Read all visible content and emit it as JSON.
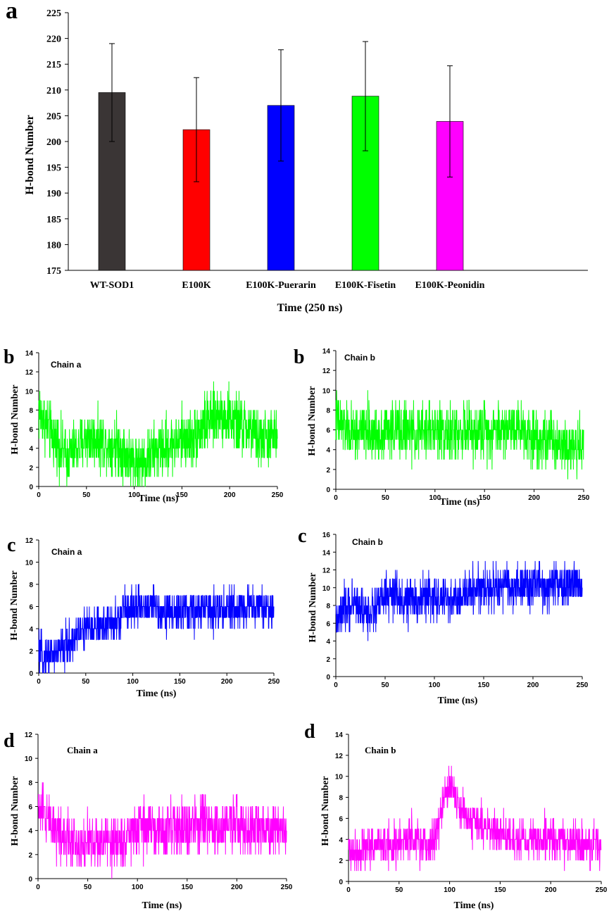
{
  "chart_data": [
    {
      "type": "bar",
      "panel": "a",
      "categories": [
        "WT-SOD1",
        "E100K",
        "E100K-Puerarin",
        "E100K-Fisetin",
        "E100K-Peonidin"
      ],
      "values": [
        209.5,
        202.3,
        207.0,
        208.8,
        203.9
      ],
      "errors": [
        9.5,
        10.1,
        10.8,
        10.6,
        10.8
      ],
      "colors": [
        "#3a3535",
        "#ff0000",
        "#0000ff",
        "#00ff00",
        "#ff00ff"
      ],
      "xlabel": "Time (250 ns)",
      "ylabel": "H-bond Number",
      "ylim": [
        175,
        225
      ],
      "yticks": [
        175,
        180,
        185,
        190,
        195,
        200,
        205,
        210,
        215,
        220,
        225
      ]
    },
    {
      "type": "line",
      "panel": "b",
      "chain": "Chain a",
      "color": "#00ff00",
      "xlabel": "Time (ns)",
      "ylabel": "H-bond Number",
      "xlim": [
        0,
        250
      ],
      "ylim": [
        0,
        14
      ],
      "xticks": [
        0,
        50,
        100,
        150,
        200,
        250
      ],
      "yticks": [
        0,
        2,
        4,
        6,
        8,
        10,
        12,
        14
      ],
      "x": [
        0,
        10,
        20,
        30,
        40,
        50,
        60,
        70,
        80,
        90,
        100,
        110,
        120,
        130,
        140,
        150,
        160,
        170,
        180,
        190,
        200,
        210,
        220,
        230,
        240,
        250
      ],
      "mean": [
        8,
        6,
        4.5,
        3,
        4,
        5,
        5,
        4.5,
        4.5,
        3.5,
        2.5,
        2.5,
        3.5,
        4,
        4.5,
        5,
        5,
        6,
        7,
        7.5,
        7,
        6.5,
        6,
        5,
        5,
        5.5
      ],
      "spread": 3
    },
    {
      "type": "line",
      "panel": "b",
      "chain": "Chain b",
      "color": "#00ff00",
      "xlabel": "Time (ns)",
      "ylabel": "H-bond Number",
      "xlim": [
        0,
        250
      ],
      "ylim": [
        0,
        14
      ],
      "xticks": [
        0,
        50,
        100,
        150,
        200,
        250
      ],
      "yticks": [
        0,
        2,
        4,
        6,
        8,
        10,
        12,
        14
      ],
      "x": [
        0,
        10,
        20,
        30,
        40,
        50,
        60,
        70,
        80,
        90,
        100,
        110,
        120,
        130,
        140,
        150,
        160,
        170,
        180,
        190,
        200,
        210,
        220,
        230,
        240,
        250
      ],
      "mean": [
        7,
        6,
        5.5,
        6,
        5.5,
        6,
        6,
        6,
        5.5,
        6,
        6,
        6,
        5.5,
        6,
        5.5,
        6,
        6,
        6,
        6.5,
        6,
        5.5,
        5,
        5,
        4.5,
        4.5,
        4.5
      ],
      "spread": 2.8
    },
    {
      "type": "line",
      "panel": "c",
      "chain": "Chain a",
      "color": "#0000ff",
      "xlabel": "Time (ns)",
      "ylabel": "H-bond Number",
      "xlim": [
        0,
        250
      ],
      "ylim": [
        0,
        12
      ],
      "xticks": [
        0,
        50,
        100,
        150,
        200,
        250
      ],
      "yticks": [
        0,
        2,
        4,
        6,
        8,
        10,
        12
      ],
      "x": [
        0,
        10,
        20,
        30,
        40,
        50,
        60,
        70,
        80,
        86,
        90,
        100,
        120,
        140,
        160,
        180,
        200,
        220,
        240,
        250
      ],
      "mean": [
        1.5,
        1.5,
        2,
        2.5,
        3.5,
        4,
        4.2,
        4.3,
        4.5,
        4.5,
        6,
        6,
        6,
        5.5,
        5.5,
        5.8,
        5.7,
        6,
        6,
        5.5
      ],
      "spread": 1.8
    },
    {
      "type": "line",
      "panel": "c",
      "chain": "Chain b",
      "color": "#0000ff",
      "xlabel": "Time (ns)",
      "ylabel": "H-bond Number",
      "xlim": [
        0,
        250
      ],
      "ylim": [
        0,
        16
      ],
      "xticks": [
        0,
        50,
        100,
        150,
        200,
        250
      ],
      "yticks": [
        0,
        2,
        4,
        6,
        8,
        10,
        12,
        14,
        16
      ],
      "x": [
        0,
        10,
        20,
        30,
        40,
        50,
        60,
        70,
        80,
        90,
        100,
        110,
        120,
        130,
        140,
        150,
        160,
        170,
        180,
        190,
        200,
        210,
        220,
        230,
        240,
        250
      ],
      "mean": [
        6,
        7.5,
        8.5,
        7,
        7.5,
        9,
        9,
        8.5,
        8.5,
        9,
        9,
        8.5,
        8.5,
        9,
        10,
        10,
        10,
        10,
        10,
        10,
        10.5,
        10,
        10,
        10,
        10.5,
        10
      ],
      "spread": 2.5
    },
    {
      "type": "line",
      "panel": "d",
      "chain": "Chain a",
      "color": "#ff00ff",
      "xlabel": "Time (ns)",
      "ylabel": "H-bond Number",
      "xlim": [
        0,
        250
      ],
      "ylim": [
        0,
        12
      ],
      "xticks": [
        0,
        50,
        100,
        150,
        200,
        250
      ],
      "yticks": [
        0,
        2,
        4,
        6,
        8,
        10,
        12
      ],
      "x": [
        0,
        10,
        20,
        30,
        40,
        50,
        60,
        70,
        80,
        90,
        100,
        110,
        120,
        130,
        140,
        150,
        160,
        170,
        180,
        190,
        200,
        210,
        220,
        230,
        240,
        250
      ],
      "mean": [
        6,
        5,
        4,
        3.5,
        3,
        3,
        3,
        3,
        3,
        3.5,
        4,
        4.5,
        4,
        4,
        4.5,
        4,
        4.5,
        4.5,
        4,
        4.5,
        4.5,
        4,
        4.5,
        4,
        4.5,
        4
      ],
      "spread": 2.2
    },
    {
      "type": "line",
      "panel": "d",
      "chain": "Chain b",
      "color": "#ff00ff",
      "xlabel": "Time (ns)",
      "ylabel": "H-bond Number",
      "xlim": [
        0,
        250
      ],
      "ylim": [
        0,
        14
      ],
      "xticks": [
        0,
        50,
        100,
        150,
        200,
        250
      ],
      "yticks": [
        0,
        2,
        4,
        6,
        8,
        10,
        12,
        14
      ],
      "x": [
        0,
        10,
        20,
        30,
        40,
        50,
        60,
        70,
        80,
        85,
        90,
        95,
        100,
        105,
        110,
        120,
        130,
        140,
        150,
        160,
        180,
        200,
        220,
        240,
        250
      ],
      "mean": [
        3,
        3,
        3.5,
        3.5,
        3.5,
        3.5,
        4,
        3.5,
        3.5,
        4,
        6,
        8,
        9,
        8.5,
        7,
        6,
        5.5,
        5,
        4.5,
        4,
        4,
        4,
        3.5,
        3.5,
        3.5
      ],
      "spread": 2
    }
  ]
}
